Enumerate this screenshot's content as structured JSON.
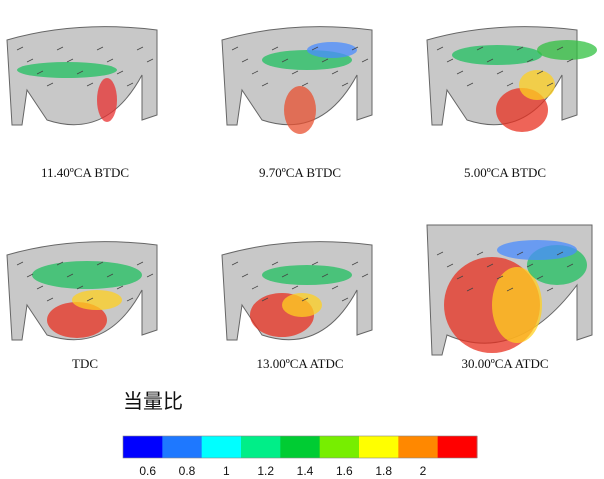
{
  "figure": {
    "panels": [
      {
        "caption": "11.40ºCA BTDC"
      },
      {
        "caption": "9.70ºCA BTDC"
      },
      {
        "caption": "5.00ºCA BTDC"
      },
      {
        "caption": "TDC"
      },
      {
        "caption": "13.00ºCA ATDC"
      },
      {
        "caption": "30.00ºCA ATDC"
      }
    ],
    "legend": {
      "title": "当量比",
      "colors": [
        "#0000ff",
        "#1e78ff",
        "#00ffff",
        "#00ee88",
        "#00cc33",
        "#77ee00",
        "#ffff00",
        "#ff8800",
        "#ff0000"
      ],
      "ticks": [
        "0.6",
        "0.8",
        "1",
        "1.2",
        "1.4",
        "1.6",
        "1.8",
        "2"
      ]
    }
  }
}
